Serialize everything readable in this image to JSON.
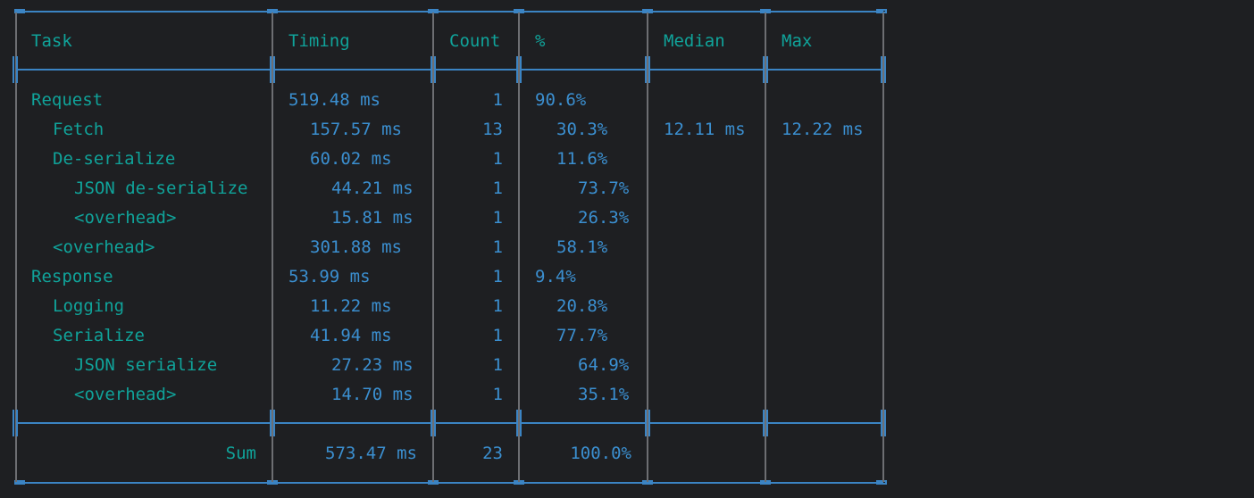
{
  "headers": {
    "task": "Task",
    "timing": "Timing",
    "count": "Count",
    "percent": "%",
    "median": "Median",
    "max": "Max"
  },
  "rows": [
    {
      "task": "Request",
      "indent": 0,
      "timing": "519.48 ms",
      "count": "1",
      "percent": "90.6%",
      "median": "",
      "max": ""
    },
    {
      "task": "Fetch",
      "indent": 1,
      "timing": "157.57 ms",
      "count": "13",
      "percent": "30.3%",
      "median": "12.11 ms",
      "max": "12.22 ms"
    },
    {
      "task": "De-serialize",
      "indent": 1,
      "timing": "60.02 ms",
      "count": "1",
      "percent": "11.6%",
      "median": "",
      "max": ""
    },
    {
      "task": "JSON de-serialize",
      "indent": 2,
      "timing": "44.21 ms",
      "count": "1",
      "percent": "73.7%",
      "median": "",
      "max": ""
    },
    {
      "task": "<overhead>",
      "indent": 2,
      "timing": "15.81 ms",
      "count": "1",
      "percent": "26.3%",
      "median": "",
      "max": ""
    },
    {
      "task": "<overhead>",
      "indent": 1,
      "timing": "301.88 ms",
      "count": "1",
      "percent": "58.1%",
      "median": "",
      "max": ""
    },
    {
      "task": "Response",
      "indent": 0,
      "timing": "53.99 ms",
      "count": "1",
      "percent": "9.4%",
      "median": "",
      "max": ""
    },
    {
      "task": "Logging",
      "indent": 1,
      "timing": "11.22 ms",
      "count": "1",
      "percent": "20.8%",
      "median": "",
      "max": ""
    },
    {
      "task": "Serialize",
      "indent": 1,
      "timing": "41.94 ms",
      "count": "1",
      "percent": "77.7%",
      "median": "",
      "max": ""
    },
    {
      "task": "JSON serialize",
      "indent": 2,
      "timing": "27.23 ms",
      "count": "1",
      "percent": "64.9%",
      "median": "",
      "max": ""
    },
    {
      "task": "<overhead>",
      "indent": 2,
      "timing": "14.70 ms",
      "count": "1",
      "percent": "35.1%",
      "median": "",
      "max": ""
    }
  ],
  "footer": {
    "label": "Sum",
    "timing": "573.47 ms",
    "count": "23",
    "percent": "100.0%"
  },
  "colors": {
    "background": "#1e1f22",
    "teal": "#10a39a",
    "blue": "#3b8fd0",
    "border": "#3b84c4",
    "divider": "#6d6e72"
  }
}
